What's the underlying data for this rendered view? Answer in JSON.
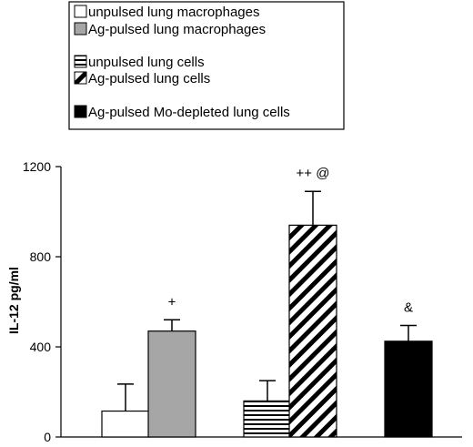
{
  "chart_data": {
    "type": "bar",
    "title": "",
    "xlabel": "",
    "ylabel": "IL-12 pg/ml",
    "ylim": [
      0,
      1200
    ],
    "yticks": [
      "0",
      "400",
      "800",
      "1200"
    ],
    "yticks_values": [
      0,
      400,
      800,
      1200
    ],
    "grid": false,
    "legend_position": "top-left",
    "series": [
      {
        "name": "unpulsed lung macrophages",
        "value": 115,
        "error": 120,
        "annotation": "",
        "pattern": "white"
      },
      {
        "name": "Ag-pulsed lung macrophages",
        "value": 470,
        "error": 50,
        "annotation": "+",
        "pattern": "gray"
      },
      {
        "name": "unpulsed lung cells",
        "value": 160,
        "error": 90,
        "annotation": "",
        "pattern": "horizontal-lines"
      },
      {
        "name": "Ag-pulsed lung cells",
        "value": 940,
        "error": 150,
        "annotation": "++ @",
        "pattern": "diagonal-lines"
      },
      {
        "name": "Ag-pulsed Mo-depleted lung cells",
        "value": 425,
        "error": 70,
        "annotation": "&",
        "pattern": "black"
      }
    ],
    "colors": {
      "gray": "#a6a6a6",
      "black": "#000000",
      "white": "#ffffff"
    }
  }
}
